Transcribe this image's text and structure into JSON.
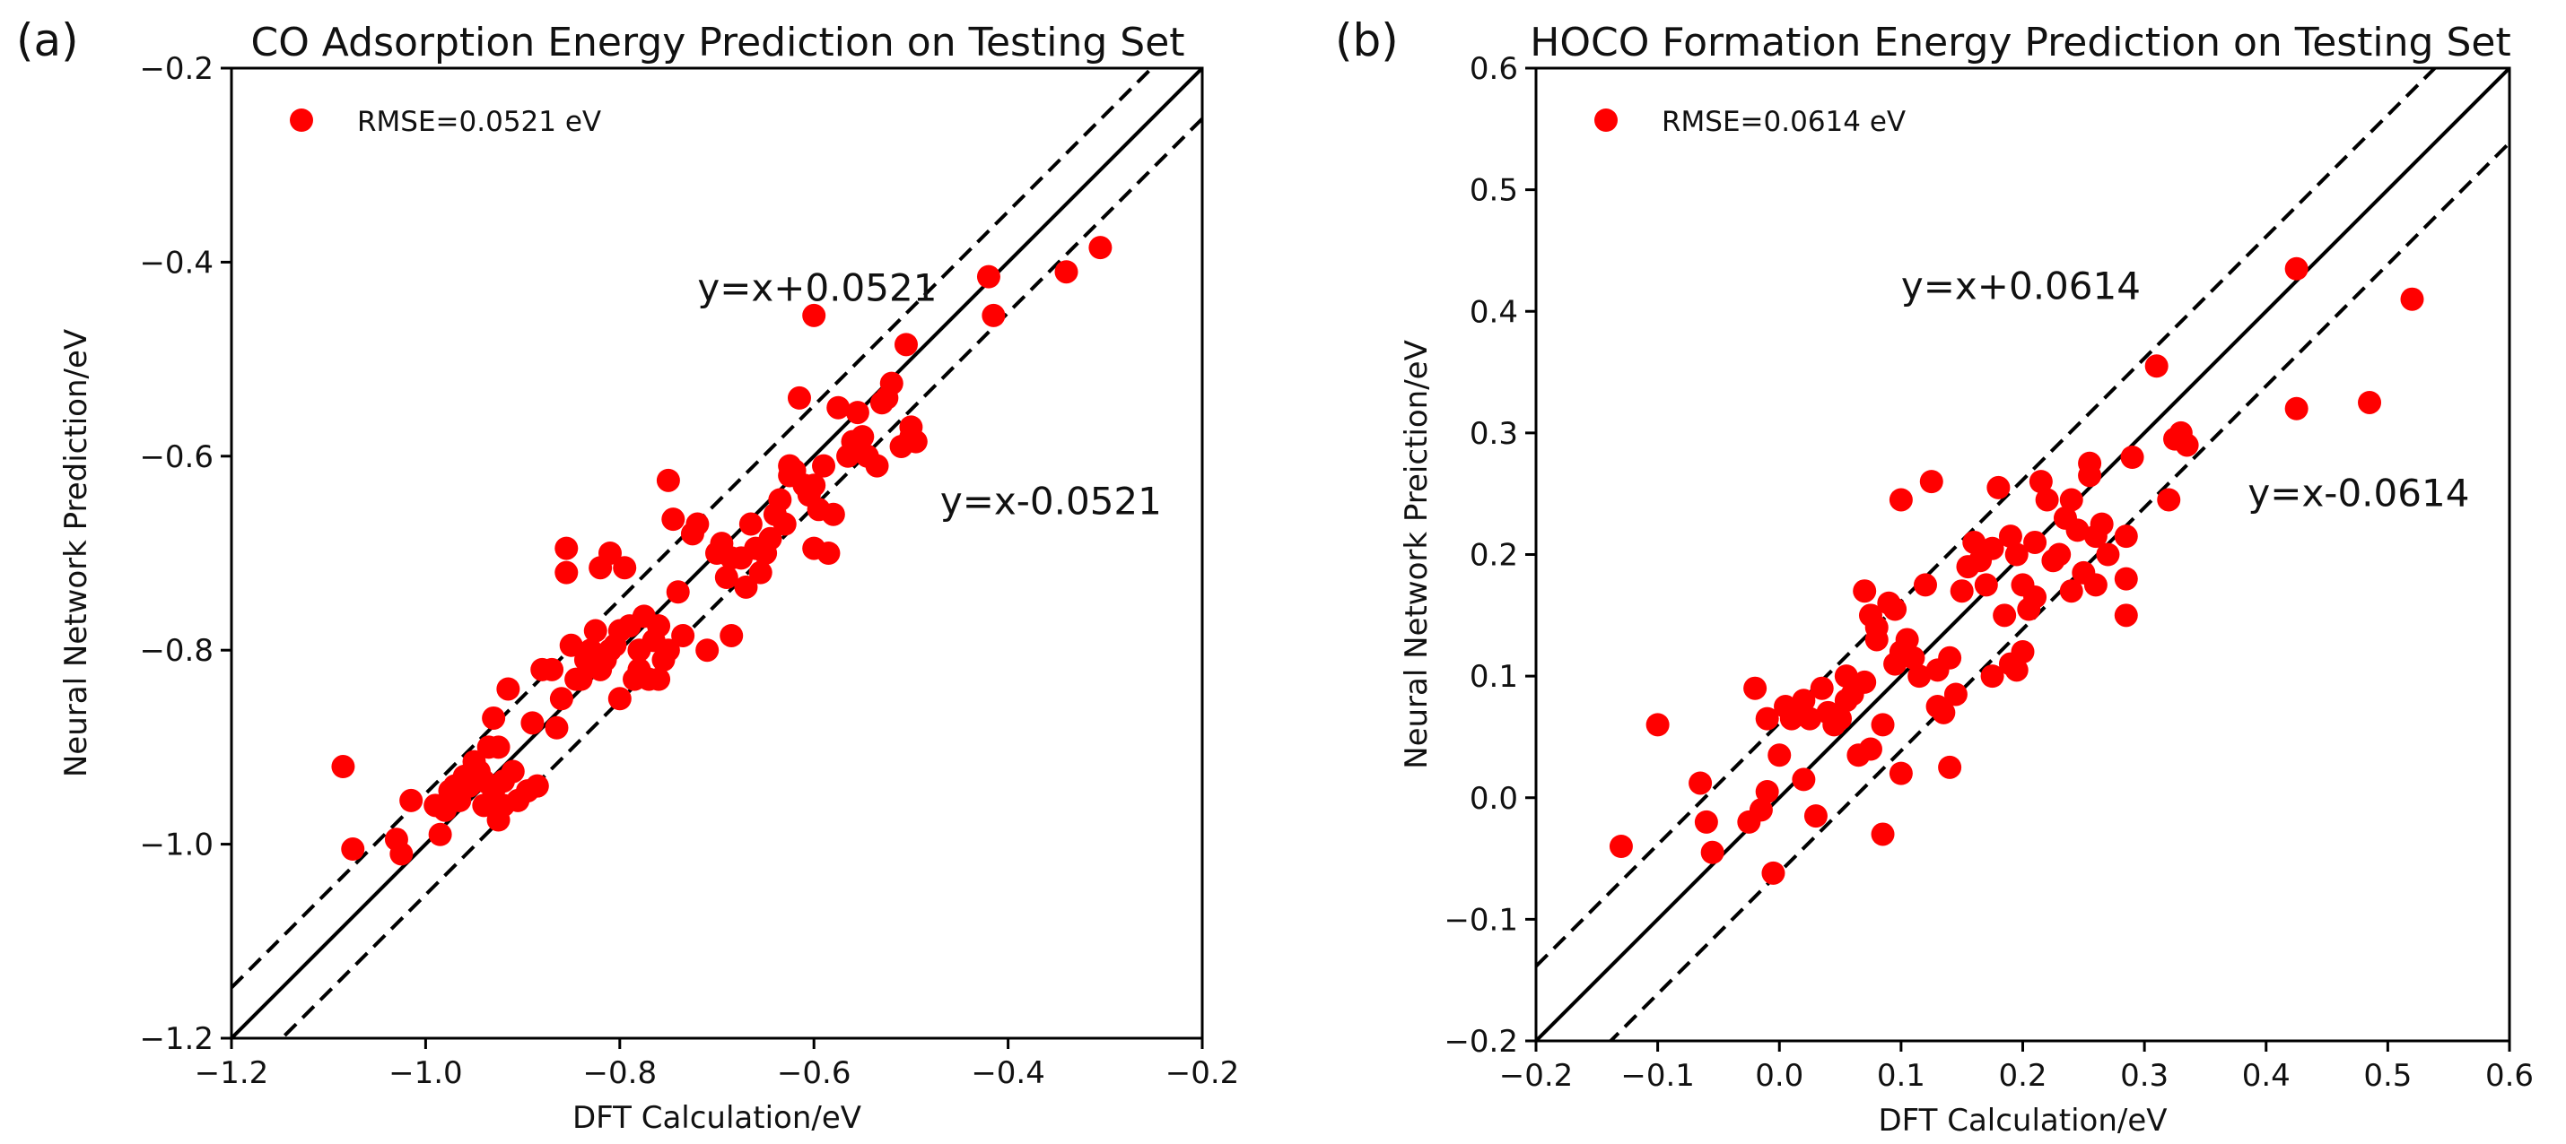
{
  "colors": {
    "point": "#ff0000",
    "line": "#000000",
    "axis": "#000000"
  },
  "chart_data": [
    {
      "panel_label": "(a)",
      "type": "scatter",
      "title": "CO Adsorption Energy Prediction on Testing Set",
      "xlabel": "DFT Calculation/eV",
      "ylabel": "Neural Network Prediction/eV",
      "xlim": [
        -1.2,
        -0.2
      ],
      "ylim": [
        -1.2,
        -0.2
      ],
      "xticks": [
        "−1.2",
        "−1.0",
        "−0.8",
        "−0.6",
        "−0.4",
        "−0.2"
      ],
      "yticks": [
        "−1.2",
        "−1.0",
        "−0.8",
        "−0.6",
        "−0.4",
        "−0.2"
      ],
      "xtick_values": [
        -1.2,
        -1.0,
        -0.8,
        -0.6,
        -0.4,
        -0.2
      ],
      "ytick_values": [
        -1.2,
        -1.0,
        -0.8,
        -0.6,
        -0.4,
        -0.2
      ],
      "legend": {
        "label": "RMSE=0.0521 eV",
        "position": "top-left"
      },
      "reference_lines": [
        {
          "style": "solid",
          "offset": 0
        },
        {
          "style": "dashed",
          "offset": 0.0521
        },
        {
          "style": "dashed",
          "offset": -0.0521
        }
      ],
      "annotations": [
        {
          "text": "y=x+0.0521",
          "x": -0.72,
          "y": -0.44
        },
        {
          "text": "y=x-0.0521",
          "x": -0.47,
          "y": -0.66
        }
      ],
      "series": [
        {
          "name": "RMSE=0.0521 eV",
          "points": [
            [
              -1.085,
              -0.92
            ],
            [
              -1.075,
              -1.005
            ],
            [
              -1.03,
              -0.995
            ],
            [
              -1.025,
              -1.01
            ],
            [
              -1.015,
              -0.955
            ],
            [
              -0.99,
              -0.96
            ],
            [
              -0.985,
              -0.99
            ],
            [
              -0.98,
              -0.965
            ],
            [
              -0.975,
              -0.945
            ],
            [
              -0.97,
              -0.94
            ],
            [
              -0.965,
              -0.955
            ],
            [
              -0.96,
              -0.93
            ],
            [
              -0.955,
              -0.94
            ],
            [
              -0.95,
              -0.915
            ],
            [
              -0.945,
              -0.925
            ],
            [
              -0.94,
              -0.96
            ],
            [
              -0.94,
              -0.935
            ],
            [
              -0.935,
              -0.9
            ],
            [
              -0.93,
              -0.87
            ],
            [
              -0.93,
              -0.945
            ],
            [
              -0.925,
              -0.975
            ],
            [
              -0.925,
              -0.9
            ],
            [
              -0.92,
              -0.96
            ],
            [
              -0.92,
              -0.935
            ],
            [
              -0.915,
              -0.84
            ],
            [
              -0.91,
              -0.925
            ],
            [
              -0.905,
              -0.955
            ],
            [
              -0.895,
              -0.945
            ],
            [
              -0.89,
              -0.875
            ],
            [
              -0.885,
              -0.94
            ],
            [
              -0.88,
              -0.82
            ],
            [
              -0.87,
              -0.82
            ],
            [
              -0.865,
              -0.88
            ],
            [
              -0.86,
              -0.85
            ],
            [
              -0.855,
              -0.72
            ],
            [
              -0.855,
              -0.695
            ],
            [
              -0.85,
              -0.795
            ],
            [
              -0.845,
              -0.83
            ],
            [
              -0.84,
              -0.83
            ],
            [
              -0.835,
              -0.81
            ],
            [
              -0.83,
              -0.8
            ],
            [
              -0.825,
              -0.78
            ],
            [
              -0.82,
              -0.82
            ],
            [
              -0.82,
              -0.715
            ],
            [
              -0.815,
              -0.81
            ],
            [
              -0.81,
              -0.8
            ],
            [
              -0.81,
              -0.7
            ],
            [
              -0.805,
              -0.795
            ],
            [
              -0.8,
              -0.85
            ],
            [
              -0.8,
              -0.78
            ],
            [
              -0.795,
              -0.715
            ],
            [
              -0.79,
              -0.775
            ],
            [
              -0.785,
              -0.83
            ],
            [
              -0.78,
              -0.82
            ],
            [
              -0.78,
              -0.8
            ],
            [
              -0.775,
              -0.765
            ],
            [
              -0.77,
              -0.83
            ],
            [
              -0.765,
              -0.79
            ],
            [
              -0.76,
              -0.775
            ],
            [
              -0.76,
              -0.83
            ],
            [
              -0.755,
              -0.81
            ],
            [
              -0.75,
              -0.8
            ],
            [
              -0.75,
              -0.625
            ],
            [
              -0.745,
              -0.665
            ],
            [
              -0.74,
              -0.74
            ],
            [
              -0.735,
              -0.785
            ],
            [
              -0.725,
              -0.68
            ],
            [
              -0.72,
              -0.67
            ],
            [
              -0.71,
              -0.8
            ],
            [
              -0.7,
              -0.7
            ],
            [
              -0.695,
              -0.69
            ],
            [
              -0.69,
              -0.725
            ],
            [
              -0.685,
              -0.785
            ],
            [
              -0.685,
              -0.705
            ],
            [
              -0.675,
              -0.705
            ],
            [
              -0.67,
              -0.735
            ],
            [
              -0.665,
              -0.67
            ],
            [
              -0.66,
              -0.695
            ],
            [
              -0.655,
              -0.72
            ],
            [
              -0.65,
              -0.7
            ],
            [
              -0.645,
              -0.685
            ],
            [
              -0.64,
              -0.66
            ],
            [
              -0.635,
              -0.645
            ],
            [
              -0.63,
              -0.67
            ],
            [
              -0.625,
              -0.61
            ],
            [
              -0.625,
              -0.62
            ],
            [
              -0.62,
              -0.615
            ],
            [
              -0.615,
              -0.54
            ],
            [
              -0.61,
              -0.63
            ],
            [
              -0.605,
              -0.64
            ],
            [
              -0.6,
              -0.63
            ],
            [
              -0.6,
              -0.695
            ],
            [
              -0.595,
              -0.655
            ],
            [
              -0.59,
              -0.61
            ],
            [
              -0.6,
              -0.455
            ],
            [
              -0.585,
              -0.7
            ],
            [
              -0.58,
              -0.66
            ],
            [
              -0.575,
              -0.55
            ],
            [
              -0.565,
              -0.6
            ],
            [
              -0.56,
              -0.585
            ],
            [
              -0.555,
              -0.555
            ],
            [
              -0.55,
              -0.58
            ],
            [
              -0.545,
              -0.6
            ],
            [
              -0.535,
              -0.61
            ],
            [
              -0.53,
              -0.545
            ],
            [
              -0.525,
              -0.54
            ],
            [
              -0.52,
              -0.525
            ],
            [
              -0.51,
              -0.59
            ],
            [
              -0.505,
              -0.485
            ],
            [
              -0.5,
              -0.58
            ],
            [
              -0.5,
              -0.57
            ],
            [
              -0.495,
              -0.585
            ],
            [
              -0.42,
              -0.415
            ],
            [
              -0.415,
              -0.455
            ],
            [
              -0.34,
              -0.41
            ],
            [
              -0.305,
              -0.385
            ]
          ]
        }
      ]
    },
    {
      "panel_label": "(b)",
      "type": "scatter",
      "title": "HOCO Formation Energy Prediction on Testing Set",
      "xlabel": "DFT Calculation/eV",
      "ylabel": "Neural Network Preiction/eV",
      "xlim": [
        -0.2,
        0.6
      ],
      "ylim": [
        -0.2,
        0.6
      ],
      "xticks": [
        "−0.2",
        "−0.1",
        "0.0",
        "0.1",
        "0.2",
        "0.3",
        "0.4",
        "0.5",
        "0.6"
      ],
      "yticks": [
        "−0.2",
        "−0.1",
        "0.0",
        "0.1",
        "0.2",
        "0.3",
        "0.4",
        "0.5",
        "0.6"
      ],
      "xtick_values": [
        -0.2,
        -0.1,
        0.0,
        0.1,
        0.2,
        0.3,
        0.4,
        0.5,
        0.6
      ],
      "ytick_values": [
        -0.2,
        -0.1,
        0.0,
        0.1,
        0.2,
        0.3,
        0.4,
        0.5,
        0.6
      ],
      "legend": {
        "label": "RMSE=0.0614 eV",
        "position": "top-left"
      },
      "reference_lines": [
        {
          "style": "solid",
          "offset": 0
        },
        {
          "style": "dashed",
          "offset": 0.0614
        },
        {
          "style": "dashed",
          "offset": -0.0614
        }
      ],
      "annotations": [
        {
          "text": "y=x+0.0614",
          "x": 0.1,
          "y": 0.41
        },
        {
          "text": "y=x-0.0614",
          "x": 0.385,
          "y": 0.24
        }
      ],
      "series": [
        {
          "name": "RMSE=0.0614 eV",
          "points": [
            [
              -0.13,
              -0.04
            ],
            [
              -0.1,
              0.06
            ],
            [
              -0.065,
              0.012
            ],
            [
              -0.06,
              -0.02
            ],
            [
              -0.055,
              -0.045
            ],
            [
              -0.025,
              -0.02
            ],
            [
              -0.02,
              0.09
            ],
            [
              -0.015,
              -0.01
            ],
            [
              -0.01,
              0.005
            ],
            [
              -0.01,
              0.065
            ],
            [
              -0.005,
              -0.062
            ],
            [
              0.0,
              0.035
            ],
            [
              0.005,
              0.075
            ],
            [
              0.01,
              0.065
            ],
            [
              0.02,
              0.08
            ],
            [
              0.02,
              0.015
            ],
            [
              0.025,
              0.065
            ],
            [
              0.03,
              -0.015
            ],
            [
              0.035,
              0.09
            ],
            [
              0.04,
              0.07
            ],
            [
              0.045,
              0.06
            ],
            [
              0.05,
              0.065
            ],
            [
              0.055,
              0.1
            ],
            [
              0.055,
              0.08
            ],
            [
              0.06,
              0.085
            ],
            [
              0.065,
              0.035
            ],
            [
              0.07,
              0.095
            ],
            [
              0.07,
              0.17
            ],
            [
              0.075,
              0.15
            ],
            [
              0.075,
              0.04
            ],
            [
              0.08,
              0.13
            ],
            [
              0.08,
              0.14
            ],
            [
              0.085,
              0.06
            ],
            [
              0.085,
              -0.03
            ],
            [
              0.09,
              0.16
            ],
            [
              0.095,
              0.11
            ],
            [
              0.095,
              0.155
            ],
            [
              0.1,
              0.12
            ],
            [
              0.1,
              0.02
            ],
            [
              0.1,
              0.245
            ],
            [
              0.105,
              0.13
            ],
            [
              0.11,
              0.115
            ],
            [
              0.115,
              0.1
            ],
            [
              0.12,
              0.175
            ],
            [
              0.125,
              0.26
            ],
            [
              0.13,
              0.105
            ],
            [
              0.13,
              0.075
            ],
            [
              0.135,
              0.07
            ],
            [
              0.14,
              0.115
            ],
            [
              0.14,
              0.025
            ],
            [
              0.145,
              0.085
            ],
            [
              0.15,
              0.17
            ],
            [
              0.155,
              0.19
            ],
            [
              0.16,
              0.21
            ],
            [
              0.165,
              0.195
            ],
            [
              0.17,
              0.175
            ],
            [
              0.175,
              0.205
            ],
            [
              0.175,
              0.1
            ],
            [
              0.18,
              0.255
            ],
            [
              0.185,
              0.15
            ],
            [
              0.19,
              0.215
            ],
            [
              0.19,
              0.11
            ],
            [
              0.195,
              0.2
            ],
            [
              0.195,
              0.105
            ],
            [
              0.2,
              0.175
            ],
            [
              0.2,
              0.12
            ],
            [
              0.205,
              0.155
            ],
            [
              0.21,
              0.21
            ],
            [
              0.21,
              0.165
            ],
            [
              0.215,
              0.26
            ],
            [
              0.22,
              0.245
            ],
            [
              0.225,
              0.195
            ],
            [
              0.23,
              0.2
            ],
            [
              0.235,
              0.23
            ],
            [
              0.24,
              0.245
            ],
            [
              0.24,
              0.17
            ],
            [
              0.245,
              0.22
            ],
            [
              0.25,
              0.185
            ],
            [
              0.255,
              0.265
            ],
            [
              0.255,
              0.275
            ],
            [
              0.26,
              0.215
            ],
            [
              0.26,
              0.175
            ],
            [
              0.265,
              0.225
            ],
            [
              0.27,
              0.2
            ],
            [
              0.285,
              0.215
            ],
            [
              0.285,
              0.18
            ],
            [
              0.285,
              0.15
            ],
            [
              0.29,
              0.28
            ],
            [
              0.31,
              0.355
            ],
            [
              0.32,
              0.245
            ],
            [
              0.325,
              0.295
            ],
            [
              0.33,
              0.3
            ],
            [
              0.335,
              0.29
            ],
            [
              0.425,
              0.435
            ],
            [
              0.425,
              0.32
            ],
            [
              0.485,
              0.325
            ],
            [
              0.52,
              0.41
            ]
          ]
        }
      ]
    }
  ]
}
